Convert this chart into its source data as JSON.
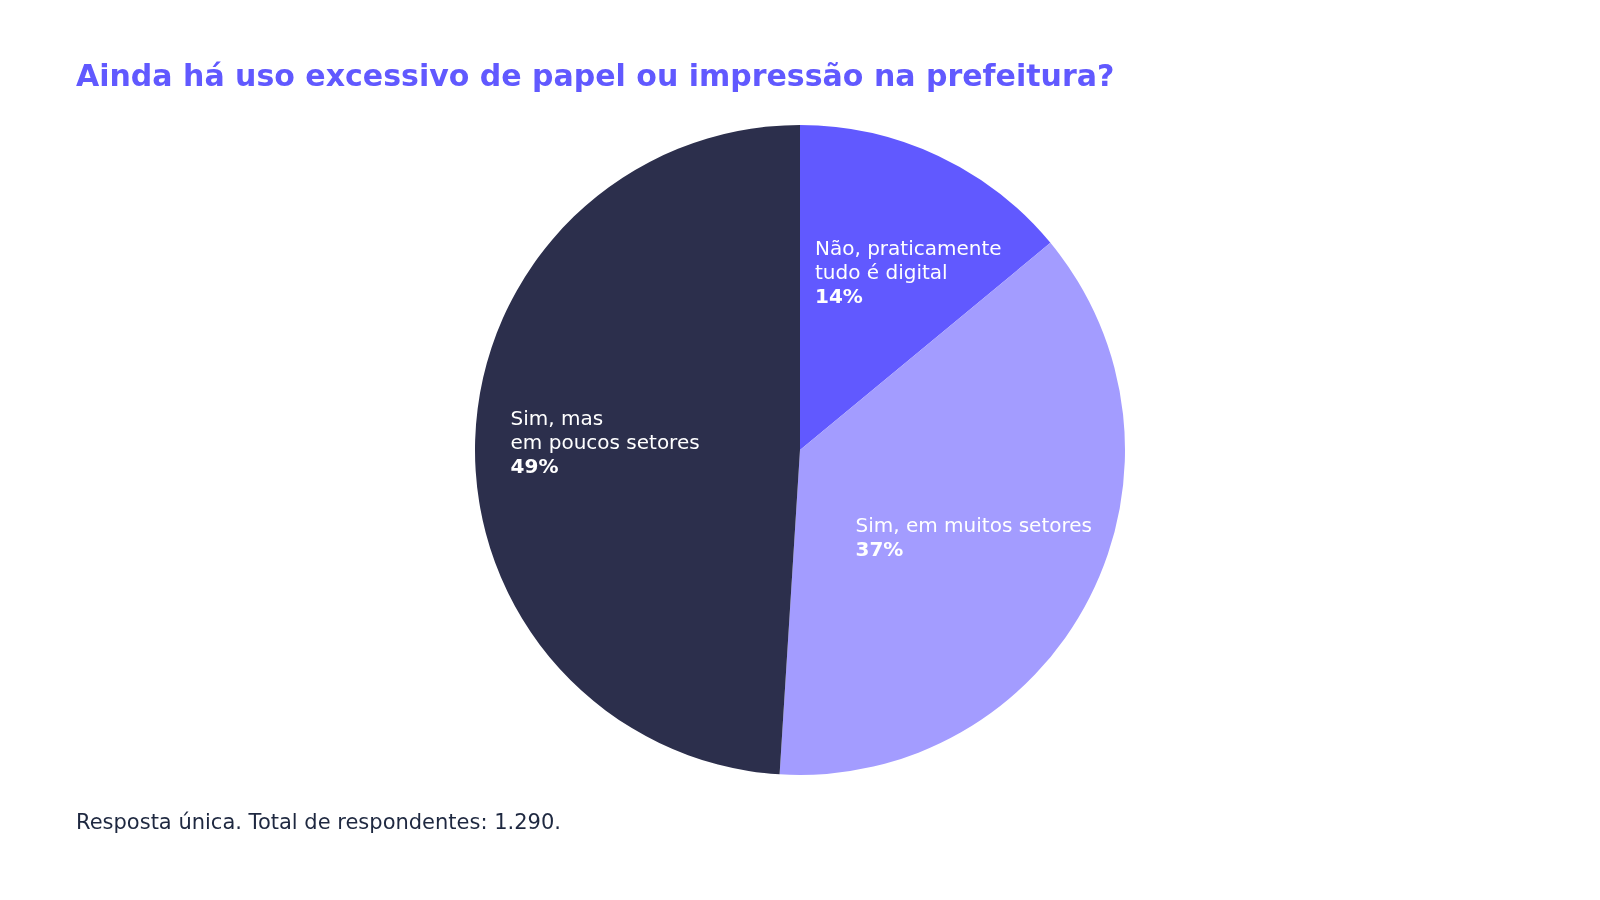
{
  "chart_data": {
    "type": "pie",
    "title": "Ainda há uso excessivo de papel ou impressão na prefeitura?",
    "categories": [
      "Não, praticamente\ntudo é digital",
      "Sim, em muitos setores",
      "Sim, mas\nem poucos setores"
    ],
    "values": [
      14,
      37,
      49
    ],
    "colors": [
      "#6159ff",
      "#a39cff",
      "#2c2f4c"
    ],
    "value_labels": [
      "14%",
      "37%",
      "49%"
    ],
    "legend": false,
    "annotations": [
      "Resposta única. Total de respondentes: 1.290."
    ]
  }
}
